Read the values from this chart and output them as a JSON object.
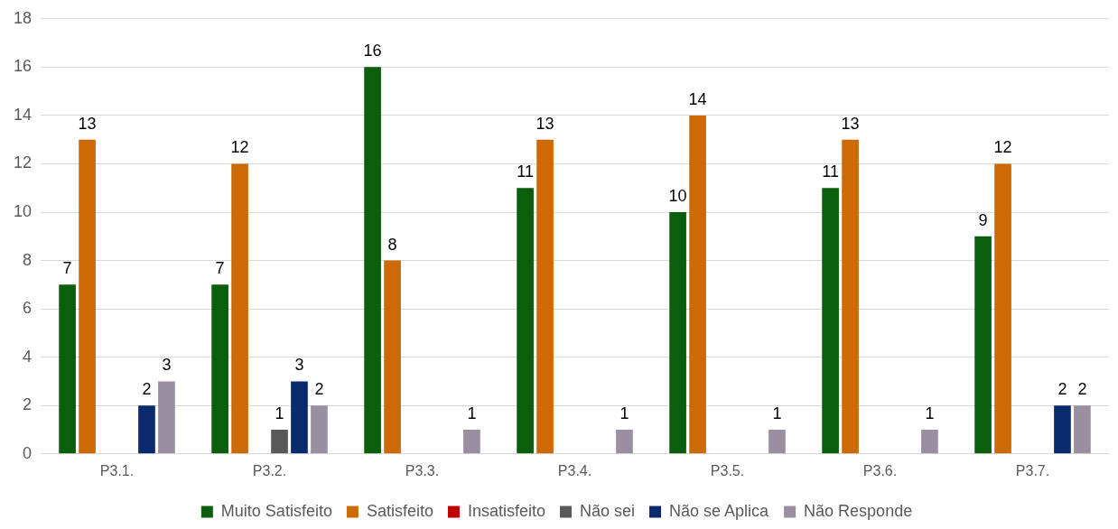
{
  "chart_data": {
    "type": "bar",
    "categories": [
      "P3.1.",
      "P3.2.",
      "P3.3.",
      "P3.4.",
      "P3.5.",
      "P3.6.",
      "P3.7."
    ],
    "series": [
      {
        "name": "Muito Satisfeito",
        "color": "#0b5e0b",
        "values": [
          7,
          7,
          16,
          11,
          10,
          11,
          9
        ]
      },
      {
        "name": "Satisfeito",
        "color": "#cc6a06",
        "values": [
          13,
          12,
          8,
          13,
          14,
          13,
          12
        ]
      },
      {
        "name": "Insatisfeito",
        "color": "#c00000",
        "values": [
          null,
          null,
          null,
          null,
          null,
          null,
          null
        ]
      },
      {
        "name": "Não sei",
        "color": "#595959",
        "values": [
          null,
          1,
          null,
          null,
          null,
          null,
          null
        ]
      },
      {
        "name": "Não se Aplica",
        "color": "#0a2a6e",
        "values": [
          2,
          3,
          null,
          null,
          null,
          null,
          2
        ]
      },
      {
        "name": "Não Responde",
        "color": "#9a8fa0",
        "values": [
          3,
          2,
          1,
          1,
          1,
          1,
          2
        ]
      }
    ],
    "ylim": [
      0,
      18
    ],
    "yticks": [
      0,
      2,
      4,
      6,
      8,
      10,
      12,
      14,
      16,
      18
    ],
    "grid": "y",
    "legend": "bottom",
    "data_labels": true
  }
}
